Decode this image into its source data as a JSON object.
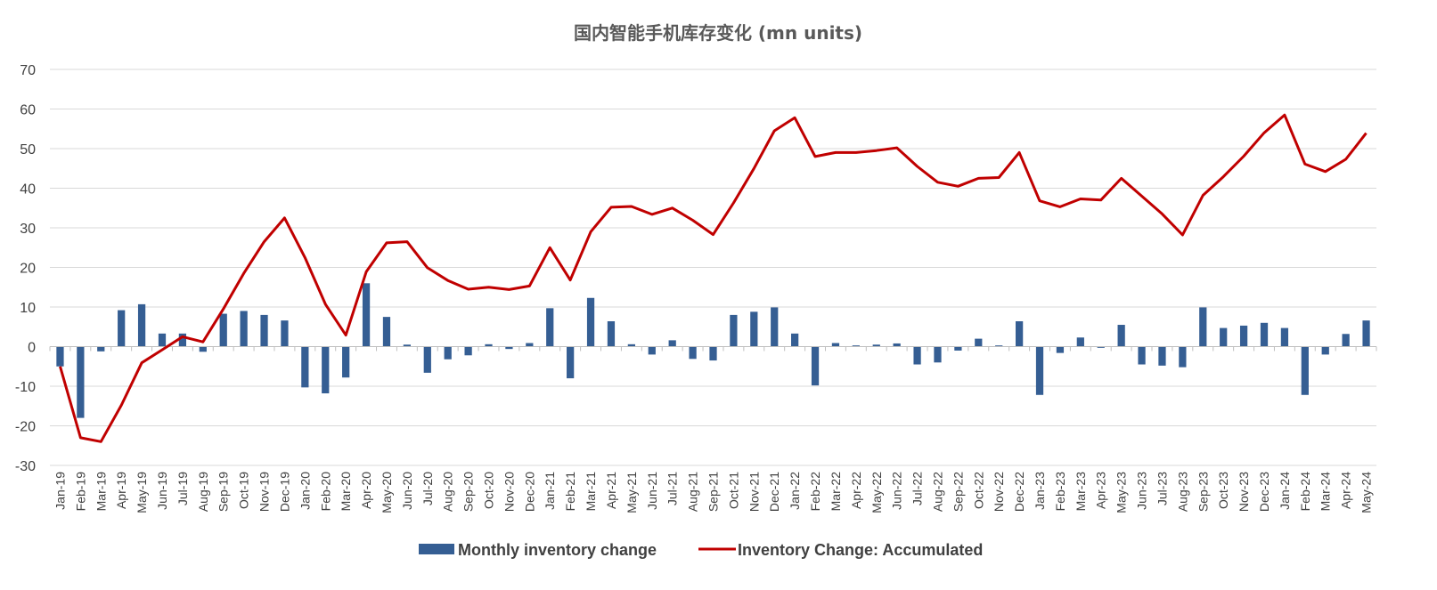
{
  "chart_data": {
    "type": "bar",
    "title": "国内智能手机库存变化 (mn units)",
    "xlabel": "",
    "ylabel": "",
    "ylim": [
      -30,
      70
    ],
    "yticks": [
      70,
      60,
      50,
      40,
      30,
      20,
      10,
      0,
      -10,
      -20,
      -30
    ],
    "grid": true,
    "legend_position": "bottom",
    "categories": [
      "Jan-19",
      "Feb-19",
      "Mar-19",
      "Apr-19",
      "May-19",
      "Jun-19",
      "Jul-19",
      "Aug-19",
      "Sep-19",
      "Oct-19",
      "Nov-19",
      "Dec-19",
      "Jan-20",
      "Feb-20",
      "Mar-20",
      "Apr-20",
      "May-20",
      "Jun-20",
      "Jul-20",
      "Aug-20",
      "Sep-20",
      "Oct-20",
      "Nov-20",
      "Dec-20",
      "Jan-21",
      "Feb-21",
      "Mar-21",
      "Apr-21",
      "May-21",
      "Jun-21",
      "Jul-21",
      "Aug-21",
      "Sep-21",
      "Oct-21",
      "Nov-21",
      "Dec-21",
      "Jan-22",
      "Feb-22",
      "Mar-22",
      "Apr-22",
      "May-22",
      "Jun-22",
      "Jul-22",
      "Aug-22",
      "Sep-22",
      "Oct-22",
      "Nov-22",
      "Dec-22",
      "Jan-23",
      "Feb-23",
      "Mar-23",
      "Apr-23",
      "May-23",
      "Jun-23",
      "Jul-23",
      "Aug-23",
      "Sep-23",
      "Oct-23",
      "Nov-23",
      "Dec-23",
      "Jan-24",
      "Feb-24",
      "Mar-24",
      "Apr-24",
      "May-24"
    ],
    "series": [
      {
        "name": "Monthly inventory change",
        "kind": "bar",
        "color": "#355E93",
        "values": [
          -5,
          -18,
          -1.2,
          9.2,
          10.7,
          3.3,
          3.3,
          -1.3,
          8.3,
          9,
          8,
          6.6,
          -10.3,
          -11.8,
          -7.8,
          16,
          7.5,
          0.5,
          -6.6,
          -3.2,
          -2.2,
          0.6,
          -0.6,
          0.9,
          9.7,
          -8,
          12.3,
          6.4,
          0.6,
          -2,
          1.6,
          -3.1,
          -3.5,
          8,
          8.8,
          9.9,
          3.3,
          -9.8,
          0.9,
          0.3,
          0.5,
          0.8,
          -4.5,
          -4,
          -1,
          2,
          0.3,
          6.4,
          -12.2,
          -1.6,
          2.3,
          -0.3,
          5.5,
          -4.5,
          -4.8,
          -5.2,
          9.9,
          4.7,
          5.3,
          6,
          4.7,
          -12.2,
          -2,
          3.2,
          6.6
        ]
      },
      {
        "name": "Inventory Change: Accumulated",
        "kind": "line",
        "color": "#C00000",
        "values": [
          -5,
          -23,
          -24,
          -14.8,
          -4.1,
          -0.8,
          2.5,
          1.2,
          9.5,
          18.5,
          26.5,
          32.5,
          22.5,
          10.7,
          2.9,
          18.9,
          26.2,
          26.5,
          19.9,
          16.7,
          14.5,
          15,
          14.4,
          15.3,
          25,
          16.8,
          29,
          35.2,
          35.4,
          33.4,
          35,
          31.9,
          28.3,
          36.3,
          45,
          54.5,
          57.8,
          48,
          49,
          49,
          49.5,
          50.2,
          45.5,
          41.5,
          40.5,
          42.5,
          42.7,
          49,
          36.8,
          35.3,
          37.3,
          37,
          42.5,
          38,
          33.5,
          28.2,
          38.2,
          42.9,
          48.1,
          54,
          58.5,
          46.1,
          44.2,
          47.3,
          53.9
        ]
      }
    ]
  }
}
